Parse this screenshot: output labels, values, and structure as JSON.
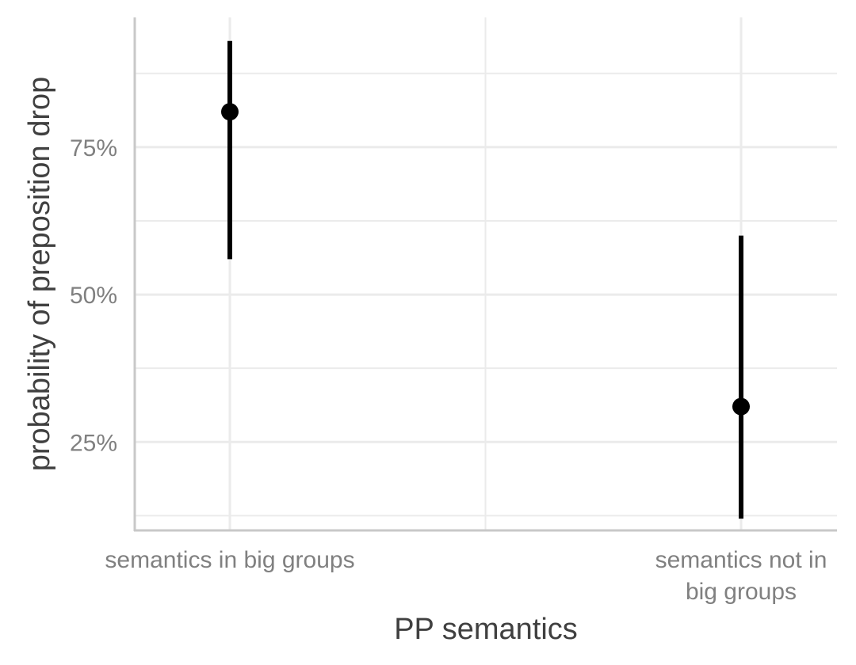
{
  "chart_data": {
    "type": "pointrange",
    "xlabel": "PP semantics",
    "ylabel": "probability of preposition drop",
    "categories": [
      [
        "semantics in big groups"
      ],
      [
        "semantics not in",
        "big groups"
      ]
    ],
    "category_names": [
      "semantics in big groups",
      "semantics not in big groups"
    ],
    "points": [
      {
        "category": "semantics in big groups",
        "estimate": 0.81,
        "lower": 0.56,
        "upper": 0.93
      },
      {
        "category": "semantics not in big groups",
        "estimate": 0.31,
        "lower": 0.12,
        "upper": 0.6
      }
    ],
    "ylim": [
      0.1,
      0.97
    ],
    "yticks": [
      0.25,
      0.5,
      0.75
    ],
    "ytick_labels": [
      "25%",
      "50%",
      "75%"
    ],
    "y_minor_ticks": [
      0.125,
      0.375,
      0.625,
      0.875
    ],
    "grid": true,
    "point_color": "#000000",
    "grid_color": "#ebebeb",
    "axis_color": "#c8c8c8"
  }
}
